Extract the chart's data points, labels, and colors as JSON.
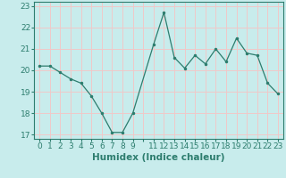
{
  "x": [
    0,
    1,
    2,
    3,
    4,
    5,
    6,
    7,
    8,
    9,
    11,
    12,
    13,
    14,
    15,
    16,
    17,
    18,
    19,
    20,
    21,
    22,
    23
  ],
  "y": [
    20.2,
    20.2,
    19.9,
    19.6,
    19.4,
    18.8,
    18.0,
    17.1,
    17.1,
    18.0,
    21.2,
    22.7,
    20.6,
    20.1,
    20.7,
    20.3,
    21.0,
    20.4,
    21.5,
    20.8,
    20.7,
    19.4,
    18.9
  ],
  "line_color": "#2d7d6e",
  "marker_color": "#2d7d6e",
  "bg_color": "#c8ecec",
  "grid_color": "#f0c8c8",
  "axis_color": "#2d7d6e",
  "xlabel": "Humidex (Indice chaleur)",
  "xlim": [
    -0.5,
    23.5
  ],
  "ylim": [
    16.8,
    23.2
  ],
  "yticks": [
    17,
    18,
    19,
    20,
    21,
    22,
    23
  ],
  "xtick_labels": [
    "0",
    "1",
    "2",
    "3",
    "4",
    "5",
    "6",
    "7",
    "8",
    "9",
    "",
    "11",
    "12",
    "13",
    "14",
    "15",
    "16",
    "17",
    "18",
    "19",
    "20",
    "21",
    "22",
    "23"
  ],
  "label_fontsize": 7.5,
  "tick_fontsize": 6.5
}
